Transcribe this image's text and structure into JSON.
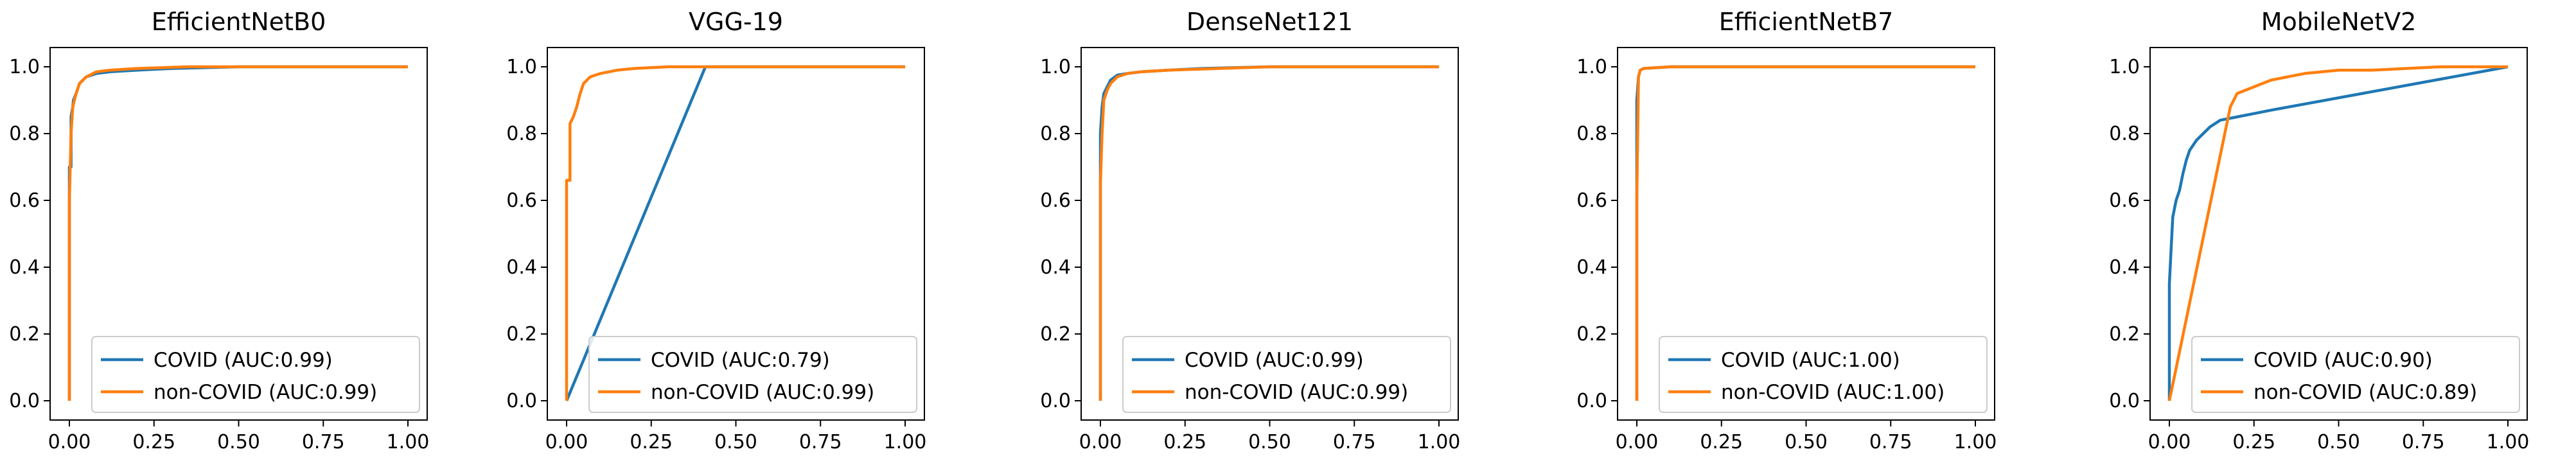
{
  "colors": {
    "covid": "#1f77b4",
    "noncovid": "#ff7f0e"
  },
  "chart_data": [
    {
      "type": "line",
      "title": "EfficientNetB0",
      "xlim": [
        0,
        1
      ],
      "ylim": [
        0,
        1
      ],
      "xticks": [
        "0.00",
        "0.25",
        "0.50",
        "0.75",
        "1.00"
      ],
      "yticks": [
        "0.0",
        "0.2",
        "0.4",
        "0.6",
        "0.8",
        "1.0"
      ],
      "legend_position": "lower-right",
      "series": [
        {
          "name": "COVID (AUC:0.99)",
          "x": [
            0,
            0,
            0.005,
            0.005,
            0.01,
            0.012,
            0.02,
            0.03,
            0.05,
            0.08,
            0.12,
            0.2,
            0.3,
            0.5,
            1.0
          ],
          "y": [
            0,
            0.7,
            0.7,
            0.85,
            0.88,
            0.9,
            0.92,
            0.95,
            0.97,
            0.98,
            0.985,
            0.99,
            0.995,
            1.0,
            1.0
          ]
        },
        {
          "name": "non-COVID (AUC:0.99)",
          "x": [
            0,
            0,
            0.005,
            0.01,
            0.02,
            0.03,
            0.05,
            0.08,
            0.12,
            0.2,
            0.35,
            0.5,
            1.0
          ],
          "y": [
            0,
            0.6,
            0.8,
            0.88,
            0.92,
            0.95,
            0.97,
            0.985,
            0.99,
            0.995,
            1.0,
            1.0,
            1.0
          ]
        }
      ]
    },
    {
      "type": "line",
      "title": "VGG-19",
      "xlim": [
        0,
        1
      ],
      "ylim": [
        0,
        1
      ],
      "xticks": [
        "0.00",
        "0.25",
        "0.50",
        "0.75",
        "1.00"
      ],
      "yticks": [
        "0.0",
        "0.2",
        "0.4",
        "0.6",
        "0.8",
        "1.0"
      ],
      "legend_position": "lower-right",
      "series": [
        {
          "name": "COVID (AUC:0.79)",
          "x": [
            0,
            0.41,
            0.45,
            1.0
          ],
          "y": [
            0,
            1.0,
            1.0,
            1.0
          ]
        },
        {
          "name": "non-COVID (AUC:0.99)",
          "x": [
            0,
            0,
            0.01,
            0.01,
            0.02,
            0.03,
            0.04,
            0.05,
            0.07,
            0.1,
            0.15,
            0.2,
            0.3,
            0.45,
            1.0
          ],
          "y": [
            0,
            0.66,
            0.66,
            0.83,
            0.85,
            0.88,
            0.92,
            0.95,
            0.97,
            0.98,
            0.99,
            0.995,
            1.0,
            1.0,
            1.0
          ]
        }
      ]
    },
    {
      "type": "line",
      "title": "DenseNet121",
      "xlim": [
        0,
        1
      ],
      "ylim": [
        0,
        1
      ],
      "xticks": [
        "0.00",
        "0.25",
        "0.50",
        "0.75",
        "1.00"
      ],
      "yticks": [
        "0.0",
        "0.2",
        "0.4",
        "0.6",
        "0.8",
        "1.0"
      ],
      "legend_position": "lower-right",
      "series": [
        {
          "name": "COVID (AUC:0.99)",
          "x": [
            0,
            0,
            0.005,
            0.01,
            0.02,
            0.03,
            0.05,
            0.08,
            0.12,
            0.2,
            0.3,
            0.5,
            1.0
          ],
          "y": [
            0,
            0.8,
            0.88,
            0.92,
            0.94,
            0.96,
            0.975,
            0.98,
            0.985,
            0.99,
            0.995,
            1.0,
            1.0
          ]
        },
        {
          "name": "non-COVID (AUC:0.99)",
          "x": [
            0,
            0,
            0.005,
            0.01,
            0.02,
            0.03,
            0.05,
            0.08,
            0.12,
            0.2,
            0.35,
            0.5,
            1.0
          ],
          "y": [
            0,
            0.65,
            0.8,
            0.9,
            0.93,
            0.95,
            0.97,
            0.98,
            0.985,
            0.99,
            0.995,
            1.0,
            1.0
          ]
        }
      ]
    },
    {
      "type": "line",
      "title": "EfficientNetB7",
      "xlim": [
        0,
        1
      ],
      "ylim": [
        0,
        1
      ],
      "xticks": [
        "0.00",
        "0.25",
        "0.50",
        "0.75",
        "1.00"
      ],
      "yticks": [
        "0.0",
        "0.2",
        "0.4",
        "0.6",
        "0.8",
        "1.0"
      ],
      "legend_position": "lower-right",
      "series": [
        {
          "name": "COVID (AUC:1.00)",
          "x": [
            0,
            0,
            0.005,
            0.01,
            0.02,
            0.05,
            0.1,
            0.3,
            1.0
          ],
          "y": [
            0,
            0.9,
            0.97,
            0.99,
            0.995,
            0.997,
            1.0,
            1.0,
            1.0
          ]
        },
        {
          "name": "non-COVID (AUC:1.00)",
          "x": [
            0,
            0,
            0.005,
            0.01,
            0.02,
            0.05,
            0.1,
            0.3,
            1.0
          ],
          "y": [
            0,
            0.6,
            0.97,
            0.99,
            0.995,
            0.997,
            1.0,
            1.0,
            1.0
          ]
        }
      ]
    },
    {
      "type": "line",
      "title": "MobileNetV2",
      "xlim": [
        0,
        1
      ],
      "ylim": [
        0,
        1
      ],
      "xticks": [
        "0.00",
        "0.25",
        "0.50",
        "0.75",
        "1.00"
      ],
      "yticks": [
        "0.0",
        "0.2",
        "0.4",
        "0.6",
        "0.8",
        "1.0"
      ],
      "legend_position": "lower-right",
      "series": [
        {
          "name": "COVID (AUC:0.90)",
          "x": [
            0,
            0,
            0.005,
            0.01,
            0.02,
            0.03,
            0.04,
            0.05,
            0.06,
            0.08,
            0.1,
            0.12,
            0.15,
            0.2,
            0.25,
            0.3,
            1.0
          ],
          "y": [
            0,
            0.35,
            0.45,
            0.55,
            0.6,
            0.63,
            0.68,
            0.72,
            0.75,
            0.78,
            0.8,
            0.82,
            0.84,
            0.85,
            0.86,
            0.87,
            1.0
          ]
        },
        {
          "name": "non-COVID (AUC:0.89)",
          "x": [
            0,
            0.18,
            0.2,
            0.25,
            0.3,
            0.35,
            0.4,
            0.5,
            0.6,
            0.7,
            0.8,
            0.9,
            1.0
          ],
          "y": [
            0,
            0.88,
            0.92,
            0.94,
            0.96,
            0.97,
            0.98,
            0.99,
            0.99,
            0.995,
            1.0,
            1.0,
            1.0
          ]
        }
      ]
    }
  ]
}
